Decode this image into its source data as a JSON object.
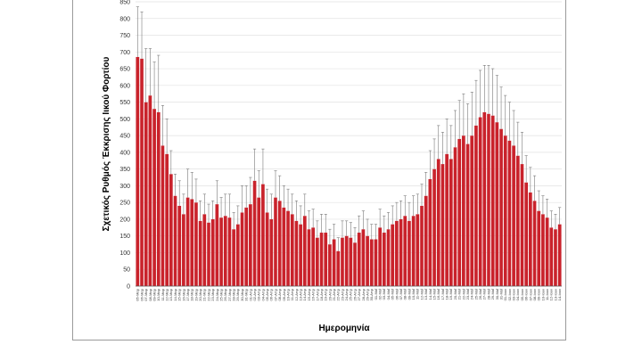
{
  "chart_data": {
    "type": "bar",
    "xlabel": "Ημερομηνία",
    "ylabel": "Σχετικός Ρυθμός Έκκρισης Ιικού Φορτίου",
    "ylim": [
      0,
      850
    ],
    "yticks": [
      0,
      50,
      100,
      150,
      200,
      250,
      300,
      350,
      400,
      450,
      500,
      550,
      600,
      650,
      700,
      750,
      800,
      850
    ],
    "grid": true,
    "error_bars": true,
    "colors": {
      "bar": "#c9222b",
      "bar_edge": "#ffffff",
      "error": "#7a7a7a",
      "grid": "#e2e2e2",
      "axis": "#555555"
    },
    "categories": [
      "05-Μαρ",
      "06-Μαρ",
      "07-Μαρ",
      "08-Μαρ",
      "09-Μαρ",
      "10-Μαρ",
      "11-Μαρ",
      "12-Μαρ",
      "13-Μαρ",
      "14-Μαρ",
      "15-Μαρ",
      "16-Μαρ",
      "17-Μαρ",
      "18-Μαρ",
      "19-Μαρ",
      "20-Μαρ",
      "21-Μαρ",
      "22-Μαρ",
      "23-Μαρ",
      "24-Μαρ",
      "25-Μαρ",
      "26-Μαρ",
      "27-Μαρ",
      "28-Μαρ",
      "29-Μαρ",
      "30-Μαρ",
      "31-Μαρ",
      "01-Απρ",
      "02-Απρ",
      "03-Απρ",
      "04-Απρ",
      "05-Απρ",
      "06-Απρ",
      "07-Απρ",
      "08-Απρ",
      "09-Απρ",
      "10-Απρ",
      "11-Απρ",
      "12-Απρ",
      "13-Απρ",
      "14-Απρ",
      "15-Απρ",
      "16-Απρ",
      "17-Απρ",
      "18-Απρ",
      "19-Απρ",
      "20-Απρ",
      "21-Απρ",
      "22-Απρ",
      "23-Απρ",
      "24-Απρ",
      "25-Απρ",
      "26-Απρ",
      "27-Απρ",
      "28-Απρ",
      "29-Απρ",
      "30-Απρ",
      "01-Μαΐ",
      "02-Μαΐ",
      "03-Μαΐ",
      "04-Μαΐ",
      "05-Μαΐ",
      "06-Μαΐ",
      "07-Μαΐ",
      "08-Μαΐ",
      "09-Μαΐ",
      "10-Μαΐ",
      "11-Μαΐ",
      "12-Μαΐ",
      "13-Μαΐ",
      "14-Μαΐ",
      "15-Μαΐ",
      "16-Μαΐ",
      "17-Μαΐ",
      "18-Μαΐ",
      "19-Μαΐ",
      "20-Μαΐ",
      "21-Μαΐ",
      "22-Μαΐ",
      "23-Μαΐ",
      "24-Μαΐ",
      "25-Μαΐ",
      "26-Μαΐ",
      "27-Μαΐ",
      "28-Μαΐ",
      "29-Μαΐ",
      "30-Μαΐ",
      "31-Μαΐ",
      "01-Ιουν",
      "02-Ιουν",
      "03-Ιουν",
      "04-Ιουν",
      "05-Ιουν",
      "06-Ιουν",
      "07-Ιουν",
      "08-Ιουν",
      "09-Ιουν",
      "10-Ιουν",
      "11-Ιουν",
      "12-Ιουν",
      "13-Ιουν",
      "14-Ιουν"
    ],
    "values": [
      685,
      680,
      550,
      570,
      530,
      520,
      420,
      395,
      335,
      270,
      240,
      215,
      265,
      260,
      250,
      195,
      215,
      190,
      200,
      245,
      205,
      210,
      205,
      170,
      185,
      220,
      235,
      245,
      315,
      265,
      305,
      220,
      200,
      265,
      255,
      235,
      225,
      215,
      195,
      185,
      210,
      170,
      175,
      145,
      160,
      160,
      125,
      140,
      105,
      145,
      150,
      145,
      130,
      160,
      170,
      150,
      140,
      140,
      175,
      160,
      170,
      185,
      195,
      200,
      210,
      195,
      210,
      215,
      240,
      270,
      320,
      350,
      380,
      365,
      395,
      380,
      415,
      440,
      450,
      425,
      450,
      480,
      505,
      520,
      515,
      510,
      490,
      470,
      450,
      435,
      420,
      390,
      365,
      310,
      280,
      255,
      225,
      215,
      205,
      175,
      170,
      185
    ],
    "errors": [
      150,
      140,
      160,
      140,
      140,
      170,
      120,
      105,
      70,
      65,
      75,
      60,
      85,
      80,
      70,
      60,
      60,
      55,
      55,
      70,
      60,
      65,
      70,
      50,
      55,
      80,
      65,
      80,
      95,
      80,
      105,
      70,
      75,
      80,
      75,
      65,
      65,
      60,
      60,
      55,
      65,
      55,
      55,
      50,
      55,
      55,
      45,
      45,
      40,
      50,
      45,
      45,
      45,
      50,
      55,
      50,
      45,
      45,
      55,
      50,
      50,
      55,
      55,
      55,
      60,
      55,
      60,
      60,
      65,
      70,
      85,
      90,
      100,
      95,
      105,
      100,
      110,
      115,
      125,
      120,
      130,
      135,
      140,
      140,
      145,
      140,
      140,
      125,
      120,
      115,
      105,
      100,
      95,
      80,
      75,
      75,
      60,
      55,
      55,
      50,
      45,
      50
    ]
  }
}
